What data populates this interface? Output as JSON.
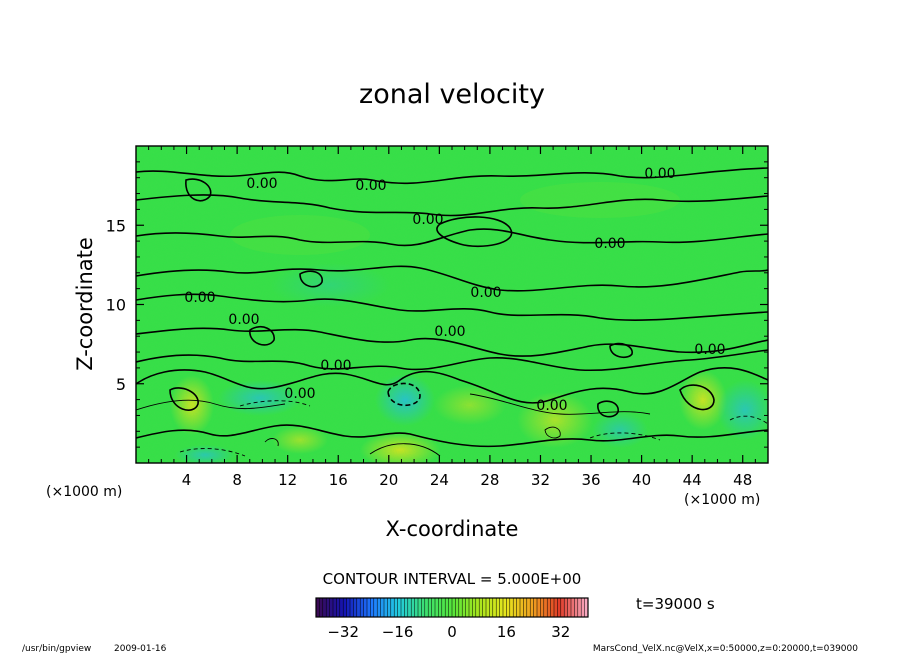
{
  "chart_data": {
    "type": "heatmap",
    "title": "zonal velocity",
    "xlabel": "X-coordinate",
    "ylabel": "Z-coordinate",
    "x_units_left": "(×1000 m)",
    "x_units_right": "(×1000 m)",
    "xlim": [
      0,
      50
    ],
    "ylim": [
      0,
      20
    ],
    "x_ticks": [
      4,
      8,
      12,
      16,
      20,
      24,
      28,
      32,
      36,
      40,
      44,
      48
    ],
    "y_ticks": [
      5,
      10,
      15
    ],
    "contour_labels": [
      "0.00",
      "0.00",
      "0.00",
      "0.00",
      "0.00",
      "0.00",
      "0.00",
      "0.00",
      "0.00",
      "0.00",
      "0.00",
      "0.00",
      "0.00"
    ],
    "contour_interval_text": "CONTOUR INTERVAL = 5.000E+00",
    "time_label": "t=39000 s",
    "colorbar": {
      "min": -40,
      "max": 40,
      "ticks": [
        -32,
        -16,
        0,
        16,
        32
      ],
      "tick_labels": [
        "−32",
        "−16",
        "0",
        "16",
        "32"
      ],
      "colors": [
        "#3a0a55",
        "#1414b4",
        "#1e78ff",
        "#22cce0",
        "#3ce070",
        "#55e63c",
        "#a8e61e",
        "#e6e61e",
        "#f0a020",
        "#e03c28",
        "#f8a8c0"
      ]
    },
    "field_colors": {
      "background": "#33e146",
      "high": "#c8e61e",
      "low": "#2ac8c8"
    },
    "program": "/usr/bin/gpview",
    "date": "2009-01-16",
    "source": "MarsCond_VelX.nc@VelX,x=0:50000,z=0:20000,t=039000"
  }
}
